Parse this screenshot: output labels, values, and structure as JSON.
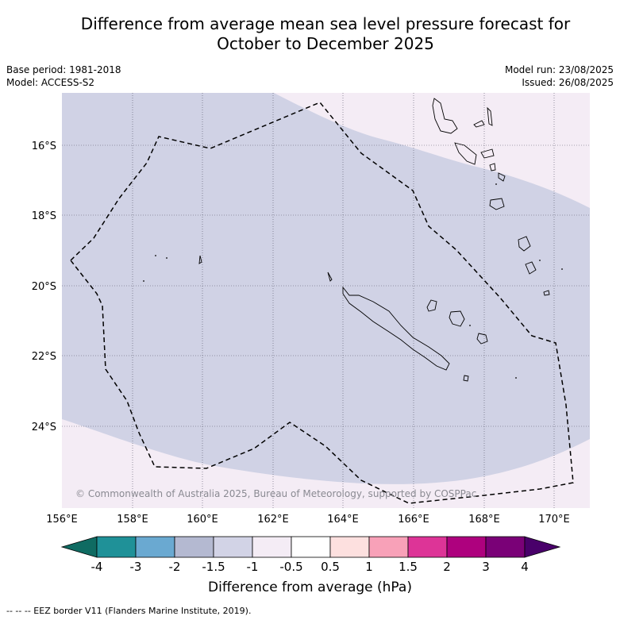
{
  "title_line1": "Difference from average mean sea level pressure forecast for",
  "title_line2": "October to December 2025",
  "base_period": "Base period: 1981-2018",
  "model": "Model: ACCESS-S2",
  "model_run": "Model run: 23/08/2025",
  "issued": "Issued: 26/08/2025",
  "copyright": "© Commonwealth of Australia 2025, Bureau of Meteorology, supported by COSPPac",
  "lon_ticks": [
    "156°E",
    "158°E",
    "160°E",
    "162°E",
    "164°E",
    "166°E",
    "168°E",
    "170°E"
  ],
  "lat_ticks": [
    "16°S",
    "18°S",
    "20°S",
    "22°S",
    "24°S"
  ],
  "colorbar": {
    "labels": [
      "-4",
      "-3",
      "-2",
      "-1.5",
      "-1",
      "-0.5",
      "0.5",
      "1",
      "1.5",
      "2",
      "3",
      "4"
    ],
    "colors": [
      "#0f6b62",
      "#1f9198",
      "#6aa9d1",
      "#b4b9d1",
      "#d2d3e6",
      "#f4ecf5",
      "#ffffff",
      "#fde0df",
      "#f8a1b8",
      "#dd3497",
      "#ae017e",
      "#7a0177",
      "#49006a"
    ],
    "title": "Difference from average (hPa)"
  },
  "footer": "-- -- -- EEZ border V11 (Flanders Marine Institute, 2019).",
  "map_colors": {
    "band_minus_1_to_minus_1_5": "#d0d2e5",
    "band_minus_0_5_to_minus_1": "#f4ecf5"
  }
}
